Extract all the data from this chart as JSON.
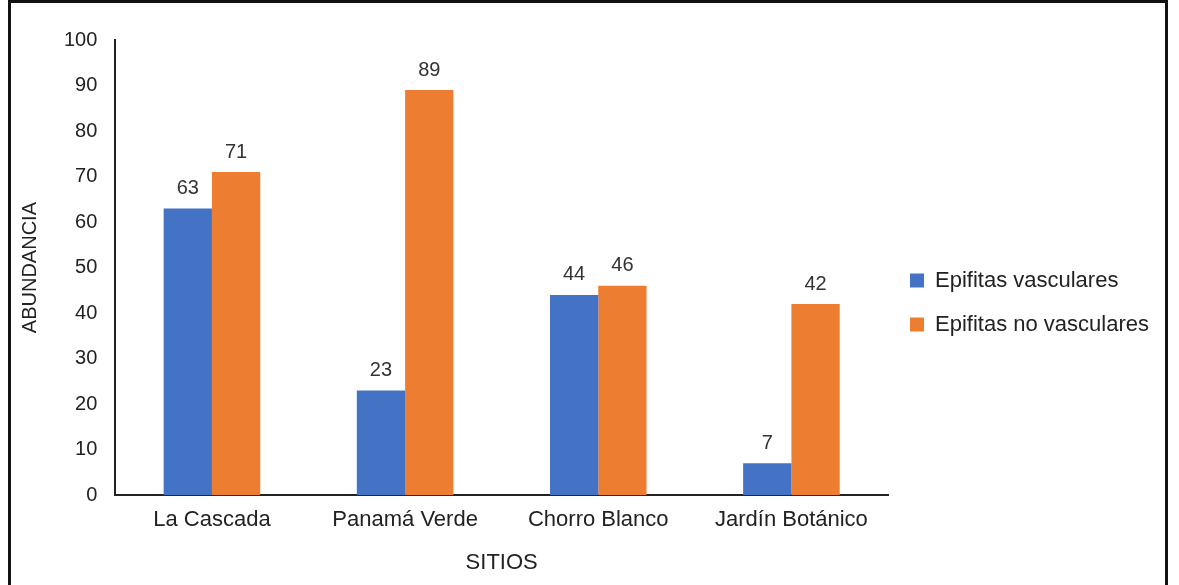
{
  "chart_data": {
    "type": "bar",
    "xlabel": "SITIOS",
    "ylabel": "ABUNDANCIA",
    "categories": [
      "La Cascada",
      "Panamá Verde",
      "Chorro Blanco",
      "Jardín Botánico"
    ],
    "series": [
      {
        "name": "Epifitas vasculares",
        "color": "#4472c4",
        "values": [
          63,
          23,
          44,
          7
        ]
      },
      {
        "name": "Epifitas no vasculares",
        "color": "#ed7d31",
        "values": [
          71,
          89,
          46,
          42
        ]
      }
    ],
    "ylim": [
      0,
      100
    ],
    "yticks": [
      0,
      10,
      20,
      30,
      40,
      50,
      60,
      70,
      80,
      90,
      100
    ],
    "grid": false,
    "legend": "right",
    "data_labels": true
  }
}
